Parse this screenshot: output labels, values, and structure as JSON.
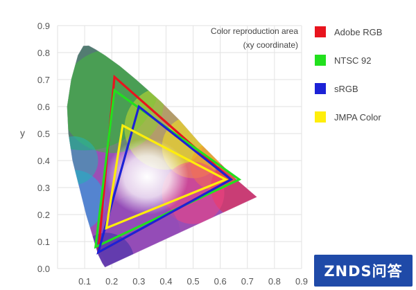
{
  "chart_data": {
    "type": "line",
    "title": "",
    "xlabel": "",
    "ylabel": "y",
    "xlim": [
      0.0,
      0.9
    ],
    "ylim": [
      0.0,
      0.9
    ],
    "grid": true,
    "x_ticks": [
      "0.1",
      "0.2",
      "0.3",
      "0.4",
      "0.5",
      "0.6",
      "0.7",
      "0.8",
      "0.9"
    ],
    "y_ticks": [
      "0.0",
      "0.1",
      "0.2",
      "0.3",
      "0.4",
      "0.5",
      "0.6",
      "0.7",
      "0.8",
      "0.9"
    ],
    "annotation": [
      "Color reproduction area",
      "(xy coordinate)"
    ],
    "legend_position": "right",
    "spectral_locus": [
      [
        0.175,
        0.005
      ],
      [
        0.165,
        0.02
      ],
      [
        0.15,
        0.05
      ],
      [
        0.135,
        0.1
      ],
      [
        0.105,
        0.2
      ],
      [
        0.08,
        0.3
      ],
      [
        0.055,
        0.4
      ],
      [
        0.04,
        0.5
      ],
      [
        0.035,
        0.6
      ],
      [
        0.05,
        0.7
      ],
      [
        0.075,
        0.79
      ],
      [
        0.095,
        0.825
      ],
      [
        0.115,
        0.826
      ],
      [
        0.14,
        0.812
      ],
      [
        0.175,
        0.79
      ],
      [
        0.23,
        0.75
      ],
      [
        0.29,
        0.7
      ],
      [
        0.38,
        0.62
      ],
      [
        0.45,
        0.55
      ],
      [
        0.52,
        0.47
      ],
      [
        0.6,
        0.39
      ],
      [
        0.66,
        0.33
      ],
      [
        0.735,
        0.265
      ],
      [
        0.175,
        0.005
      ]
    ],
    "series": [
      {
        "name": "Adobe RGB",
        "color": "#e8141e",
        "points": [
          [
            0.64,
            0.33
          ],
          [
            0.21,
            0.71
          ],
          [
            0.15,
            0.06
          ]
        ]
      },
      {
        "name": "NTSC 92",
        "color": "#22e01e",
        "points": [
          [
            0.67,
            0.33
          ],
          [
            0.21,
            0.66
          ],
          [
            0.14,
            0.08
          ]
        ]
      },
      {
        "name": "sRGB",
        "color": "#1c22d6",
        "points": [
          [
            0.64,
            0.33
          ],
          [
            0.3,
            0.6
          ],
          [
            0.15,
            0.06
          ]
        ]
      },
      {
        "name": "JMPA Color",
        "color": "#ffee0a",
        "points": [
          [
            0.62,
            0.33
          ],
          [
            0.24,
            0.53
          ],
          [
            0.18,
            0.15
          ]
        ]
      }
    ]
  },
  "watermark_text": "ZNDS问答"
}
